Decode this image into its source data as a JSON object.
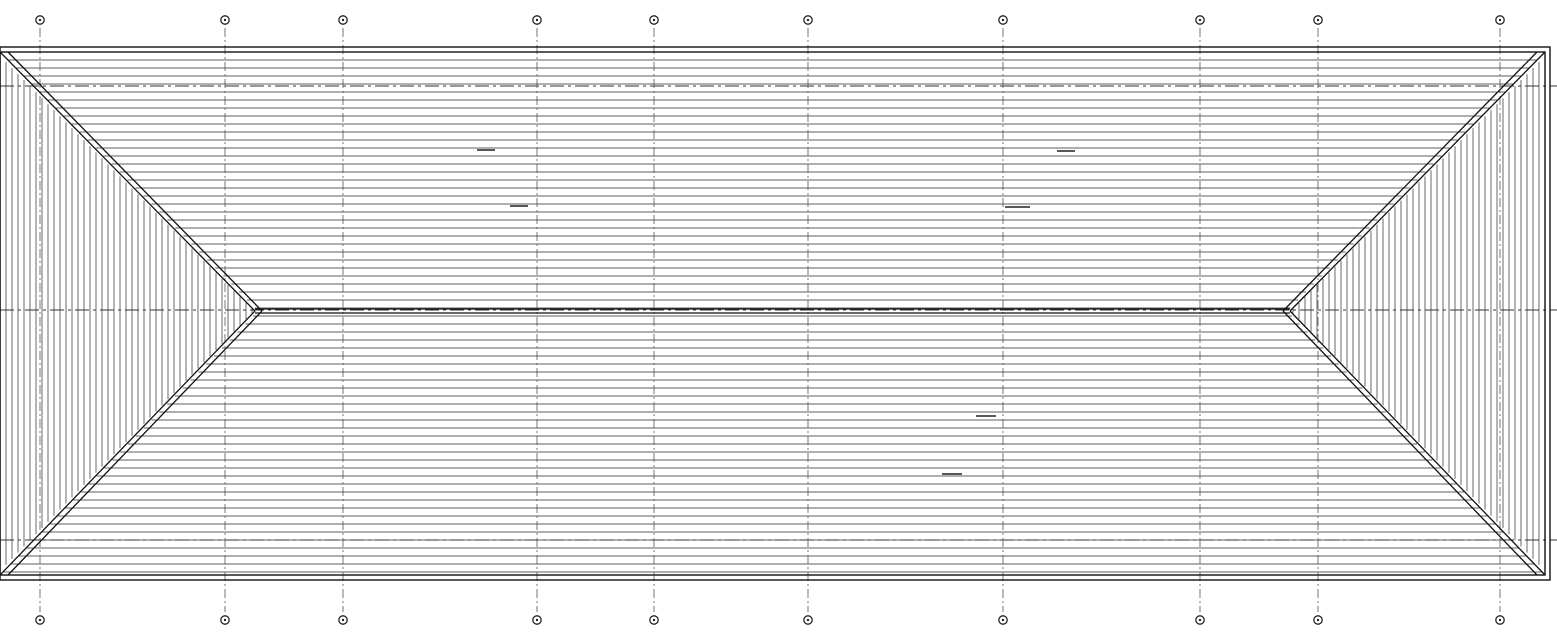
{
  "drawing": {
    "type": "hip-roof-plan",
    "grid_columns_top": 10,
    "grid_columns_bottom": 10,
    "colors": {
      "line": "#111111",
      "hatch": "#2a2a2a",
      "background": "#ffffff"
    },
    "icons": {
      "grid_marker": "circle-grid-bubble-icon"
    }
  }
}
